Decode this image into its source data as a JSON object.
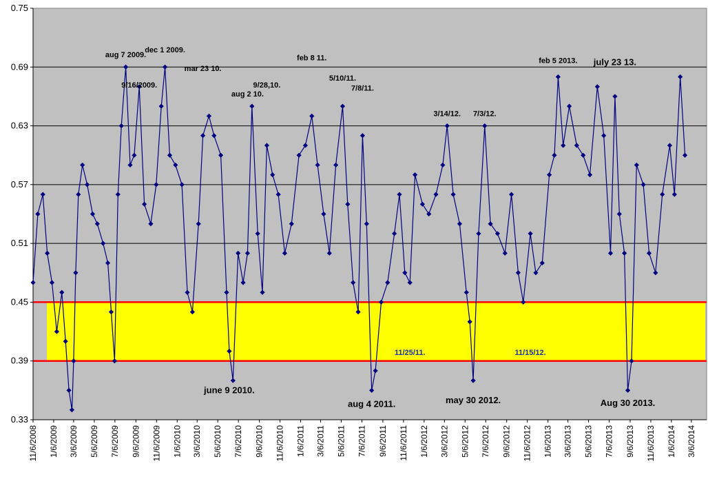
{
  "chart_data": {
    "type": "line",
    "title": "",
    "xlabel": "",
    "ylabel": "",
    "ylim": [
      0.33,
      0.75
    ],
    "xlim": [
      "2008-11-06",
      "2014-04-20"
    ],
    "grid": "horizontal",
    "marker": "diamond",
    "y_ticks": [
      "0.33",
      "0.39",
      "0.45",
      "0.51",
      "0.57",
      "0.63",
      "0.69",
      "0.75"
    ],
    "x_ticks": [
      "11/6/2008",
      "1/6/2009",
      "3/6/2009",
      "5/6/2009",
      "7/6/2009",
      "9/6/2009",
      "11/6/2009",
      "1/6/2010",
      "3/6/2010",
      "5/6/2010",
      "7/6/2010",
      "9/6/2010",
      "11/6/2010",
      "1/6/2011",
      "3/6/2011",
      "5/6/2011",
      "7/6/2011",
      "9/6/2011",
      "11/6/2011",
      "1/6/2012",
      "3/6/2012",
      "5/6/2012",
      "7/6/2012",
      "9/6/2012",
      "11/6/2012",
      "1/6/2013",
      "3/6/2013",
      "5/6/2013",
      "7/6/2013",
      "9/6/2013",
      "11/6/2013",
      "1/6/2014",
      "3/6/2014"
    ],
    "band": {
      "y_low": 0.39,
      "y_high": 0.45,
      "fill": "#ffff00",
      "edge": "#ff0000"
    },
    "colors": {
      "plot_bg": "#c0c0c0",
      "series": "#000080",
      "band": "#ffff00",
      "band_edge": "#ff0000",
      "band_note": "#1a2fa8"
    },
    "series": [
      {
        "x": [
          "2008-11-06",
          "2008-11-20",
          "2008-12-05",
          "2008-12-18",
          "2009-01-01",
          "2009-01-15",
          "2009-01-30",
          "2009-02-10",
          "2009-02-20",
          "2009-03-01",
          "2009-03-06",
          "2009-03-12",
          "2009-03-20",
          "2009-04-01",
          "2009-04-15",
          "2009-05-01",
          "2009-05-15",
          "2009-06-01",
          "2009-06-15",
          "2009-06-25",
          "2009-07-05",
          "2009-07-15",
          "2009-07-25",
          "2009-08-07",
          "2009-08-20",
          "2009-09-01",
          "2009-09-16",
          "2009-10-01",
          "2009-10-20",
          "2009-11-05",
          "2009-11-20",
          "2009-12-01",
          "2009-12-15",
          "2010-01-01",
          "2010-01-20",
          "2010-02-05",
          "2010-02-20",
          "2010-03-10",
          "2010-03-23",
          "2010-04-10",
          "2010-04-25",
          "2010-05-15",
          "2010-06-01",
          "2010-06-09",
          "2010-06-20",
          "2010-07-05",
          "2010-07-20",
          "2010-08-02",
          "2010-08-15",
          "2010-09-01",
          "2010-09-15",
          "2010-09-28",
          "2010-10-15",
          "2010-11-01",
          "2010-11-20",
          "2010-12-10",
          "2011-01-01",
          "2011-01-20",
          "2011-02-08",
          "2011-02-25",
          "2011-03-15",
          "2011-04-01",
          "2011-04-20",
          "2011-05-10",
          "2011-05-25",
          "2011-06-10",
          "2011-06-25",
          "2011-07-08",
          "2011-07-20",
          "2011-08-04",
          "2011-08-15",
          "2011-09-01",
          "2011-09-20",
          "2011-10-10",
          "2011-10-25",
          "2011-11-10",
          "2011-11-25",
          "2011-12-10",
          "2012-01-01",
          "2012-01-20",
          "2012-02-10",
          "2012-03-01",
          "2012-03-14",
          "2012-04-01",
          "2012-04-20",
          "2012-05-10",
          "2012-05-20",
          "2012-05-30",
          "2012-06-15",
          "2012-07-03",
          "2012-07-20",
          "2012-08-10",
          "2012-09-01",
          "2012-09-20",
          "2012-10-10",
          "2012-10-25",
          "2012-11-15",
          "2012-12-01",
          "2012-12-20",
          "2013-01-10",
          "2013-01-25",
          "2013-02-05",
          "2013-02-20",
          "2013-03-10",
          "2013-04-01",
          "2013-04-20",
          "2013-05-10",
          "2013-06-01",
          "2013-06-20",
          "2013-07-10",
          "2013-07-23",
          "2013-08-05",
          "2013-08-20",
          "2013-08-30",
          "2013-09-10",
          "2013-09-25",
          "2013-10-15",
          "2013-11-01",
          "2013-11-20",
          "2013-12-10",
          "2014-01-01",
          "2014-01-15",
          "2014-02-01",
          "2014-02-15"
        ],
        "y": [
          0.47,
          0.54,
          0.56,
          0.5,
          0.47,
          0.42,
          0.46,
          0.41,
          0.36,
          0.34,
          0.39,
          0.48,
          0.56,
          0.59,
          0.57,
          0.54,
          0.53,
          0.51,
          0.49,
          0.44,
          0.39,
          0.56,
          0.63,
          0.69,
          0.59,
          0.6,
          0.67,
          0.55,
          0.53,
          0.57,
          0.65,
          0.69,
          0.6,
          0.59,
          0.57,
          0.46,
          0.44,
          0.53,
          0.62,
          0.64,
          0.62,
          0.6,
          0.46,
          0.4,
          0.37,
          0.5,
          0.47,
          0.5,
          0.65,
          0.52,
          0.46,
          0.61,
          0.58,
          0.56,
          0.5,
          0.53,
          0.6,
          0.61,
          0.64,
          0.59,
          0.54,
          0.5,
          0.59,
          0.65,
          0.55,
          0.47,
          0.44,
          0.62,
          0.53,
          0.36,
          0.38,
          0.45,
          0.47,
          0.52,
          0.56,
          0.48,
          0.47,
          0.58,
          0.55,
          0.54,
          0.56,
          0.59,
          0.63,
          0.56,
          0.53,
          0.46,
          0.43,
          0.37,
          0.52,
          0.63,
          0.53,
          0.52,
          0.5,
          0.56,
          0.48,
          0.45,
          0.52,
          0.48,
          0.49,
          0.58,
          0.6,
          0.68,
          0.61,
          0.65,
          0.61,
          0.6,
          0.58,
          0.67,
          0.62,
          0.5,
          0.66,
          0.54,
          0.5,
          0.36,
          0.39,
          0.59,
          0.57,
          0.5,
          0.48,
          0.56,
          0.61,
          0.56,
          0.68,
          0.6
        ]
      }
    ],
    "annotations": [
      {
        "text": "aug 7 2009.",
        "x": "2009-08-07",
        "y": 0.7
      },
      {
        "text": "9/16/2009.",
        "x": "2009-09-16",
        "y": 0.669
      },
      {
        "text": "dec 1 2009.",
        "x": "2009-12-01",
        "y": 0.705
      },
      {
        "text": "mar 23 10.",
        "x": "2010-03-23",
        "y": 0.686
      },
      {
        "text": "aug 2 10.",
        "x": "2010-08-02",
        "y": 0.66
      },
      {
        "text": "9/28,10.",
        "x": "2010-09-28",
        "y": 0.669
      },
      {
        "text": "feb 8 11.",
        "x": "2011-02-08",
        "y": 0.697
      },
      {
        "text": "5/10/11.",
        "x": "2011-05-10",
        "y": 0.676
      },
      {
        "text": "7/8/11.",
        "x": "2011-07-08",
        "y": 0.666
      },
      {
        "text": "3/14/12.",
        "x": "2012-03-14",
        "y": 0.64
      },
      {
        "text": "7/3/12.",
        "x": "2012-07-03",
        "y": 0.64
      },
      {
        "text": "feb 5 2013.",
        "x": "2013-02-05",
        "y": 0.694
      },
      {
        "text": "july 23 13.",
        "x": "2013-07-23",
        "y": 0.692
      },
      {
        "text": "june 9 2010.",
        "x": "2010-06-09",
        "y": 0.357
      },
      {
        "text": "aug 4 2011.",
        "x": "2011-08-04",
        "y": 0.343
      },
      {
        "text": "may 30 2012.",
        "x": "2012-05-30",
        "y": 0.347
      },
      {
        "text": "Aug 30 2013.",
        "x": "2013-08-30",
        "y": 0.344
      },
      {
        "text": "11/25/11.",
        "x": "2011-11-25",
        "y": 0.396
      },
      {
        "text": "11/15/12.",
        "x": "2012-11-15",
        "y": 0.396
      }
    ]
  }
}
